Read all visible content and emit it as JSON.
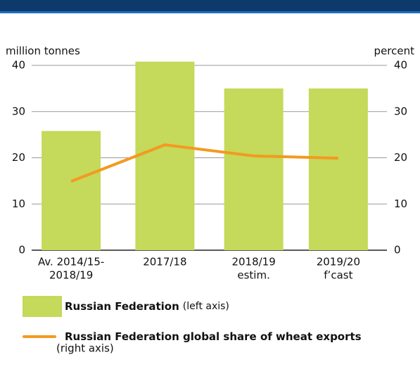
{
  "chart_data": {
    "type": "bar_line",
    "y_label": "million tonnes",
    "y2_label": "percent",
    "categories": [
      [
        "Av. 2014/15-",
        "2018/19"
      ],
      [
        "2017/18"
      ],
      [
        "2018/19",
        "estim."
      ],
      [
        "2019/20",
        "f’cast"
      ]
    ],
    "ylim": [
      0,
      40
    ],
    "yticks": [
      0,
      10,
      20,
      30,
      40
    ],
    "y2lim": [
      0,
      40
    ],
    "y2ticks": [
      0,
      10,
      20,
      30,
      40
    ],
    "grid": true,
    "series": [
      {
        "name": "Russian Federation",
        "legend_note": "(left axis)",
        "type": "bar",
        "color": "#c5d95a",
        "values": [
          25.8,
          40.8,
          35.0,
          35.0
        ]
      },
      {
        "name": "Russian Federation global share of wheat exports",
        "legend_note": "(right axis)",
        "type": "line",
        "axis": "y2",
        "color": "#f39a21",
        "values": [
          14.9,
          22.8,
          20.4,
          19.9
        ]
      }
    ]
  }
}
